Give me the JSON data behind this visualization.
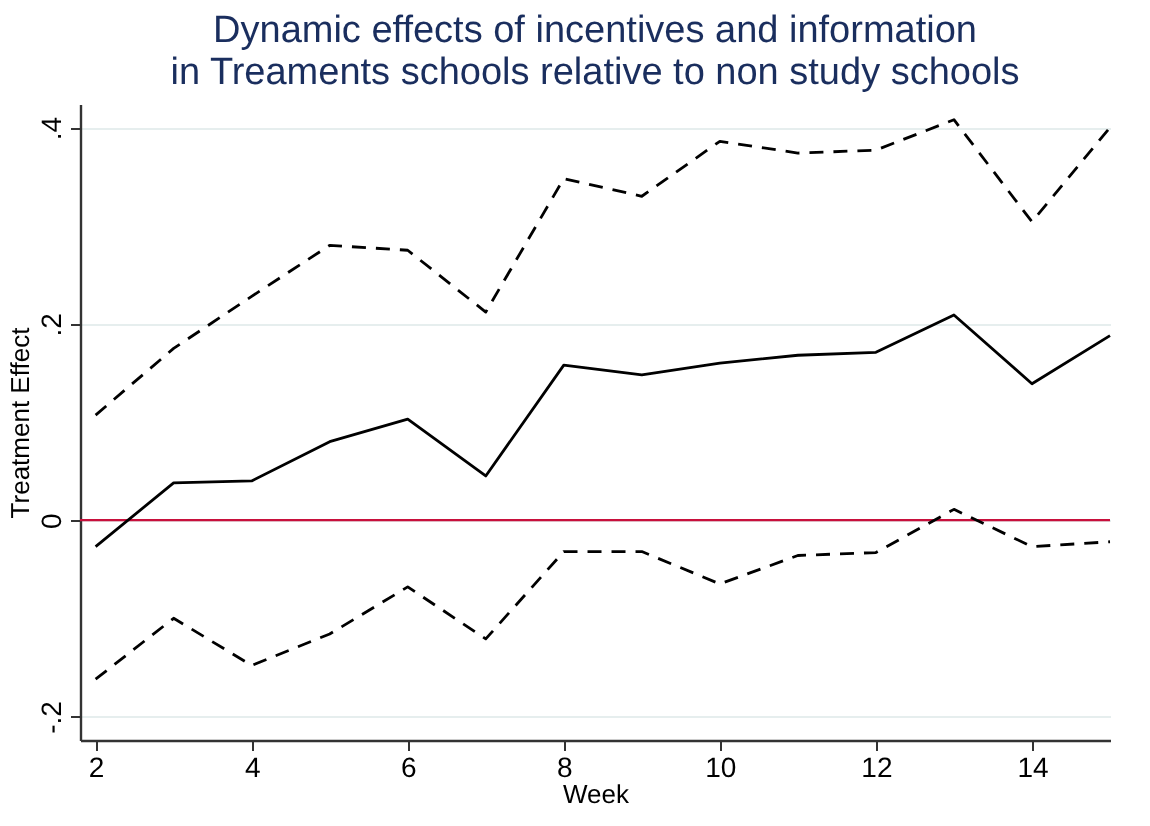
{
  "chart_data": {
    "type": "line",
    "title": [
      "Dynamic effects of incentives and information",
      "in Treaments schools relative to non study schools"
    ],
    "xlabel": "Week",
    "ylabel": "Treatment Effect",
    "x": [
      2,
      3,
      4,
      5,
      6,
      7,
      8,
      9,
      10,
      11,
      12,
      13,
      14,
      15
    ],
    "series": [
      {
        "color": "#000000",
        "line_style": "dashed",
        "values": [
          0.107,
          0.175,
          0.228,
          0.28,
          0.275,
          0.212,
          0.348,
          0.33,
          0.386,
          0.374,
          0.377,
          0.408,
          0.304,
          0.4
        ]
      },
      {
        "color": "#000000",
        "line_style": "solid",
        "values": [
          -0.027,
          0.038,
          0.04,
          0.08,
          0.103,
          0.045,
          0.158,
          0.148,
          0.16,
          0.168,
          0.171,
          0.209,
          0.139,
          0.188
        ]
      },
      {
        "color": "#000000",
        "line_style": "dashed",
        "values": [
          -0.162,
          -0.1,
          -0.148,
          -0.116,
          -0.068,
          -0.121,
          -0.032,
          -0.032,
          -0.065,
          -0.036,
          -0.033,
          0.011,
          -0.027,
          -0.022
        ]
      }
    ],
    "xlim": [
      1.8,
      15
    ],
    "xticks": [
      2,
      4,
      6,
      8,
      10,
      12,
      14
    ],
    "ylim": [
      -0.224,
      0.424
    ],
    "yticks": [
      {
        "value": -0.2,
        "label": "-.2"
      },
      0,
      {
        "value": 0.2,
        "label": ".2"
      },
      {
        "value": 0.4,
        "label": ".4"
      }
    ],
    "ref_lines": [
      {
        "axis": "y",
        "value": 0,
        "color": "#c8103c"
      }
    ],
    "grid": "y",
    "marker": "none"
  }
}
